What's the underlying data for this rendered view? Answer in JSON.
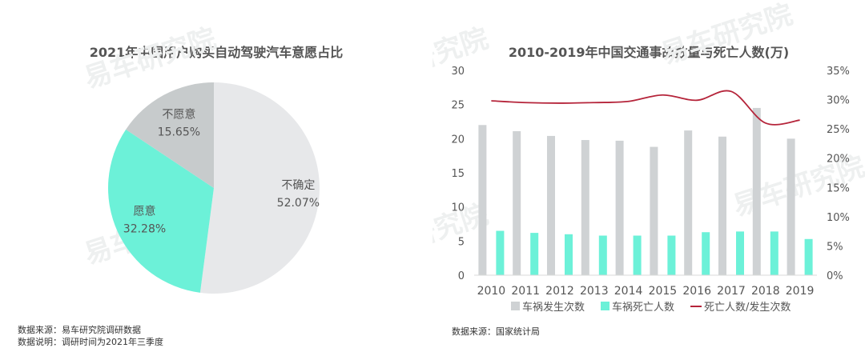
{
  "watermark": "易车研究院",
  "colors": {
    "gray": "#cfd2d4",
    "teal": "#6cf1d8",
    "red": "#b5243a",
    "text": "#555555"
  },
  "chart_data": [
    {
      "type": "pie",
      "title": "2021年中国用户购买自动驾驶汽车意愿占比",
      "slices": [
        {
          "label": "不确定",
          "value": 52.07,
          "value_label": "52.07%",
          "color": "#e7e8ea"
        },
        {
          "label": "愿意",
          "value": 32.28,
          "value_label": "32.28%",
          "color": "#6cf1d8"
        },
        {
          "label": "不愿意",
          "value": 15.65,
          "value_label": "15.65%",
          "color": "#c7cbcc"
        }
      ]
    },
    {
      "type": "bar",
      "title": "2010-2019年中国交通事故数量与死亡人数(万)",
      "categories": [
        "2010",
        "2011",
        "2012",
        "2013",
        "2014",
        "2015",
        "2016",
        "2017",
        "2018",
        "2019"
      ],
      "series": [
        {
          "name": "车祸发生次数",
          "type": "bar",
          "axis": "left",
          "color": "#cfd2d4",
          "values": [
            22.0,
            21.1,
            20.4,
            19.8,
            19.7,
            18.8,
            21.2,
            20.3,
            24.5,
            20.0
          ]
        },
        {
          "name": "车祸死亡人数",
          "type": "bar",
          "axis": "left",
          "color": "#6cf1d8",
          "values": [
            6.5,
            6.2,
            6.0,
            5.8,
            5.8,
            5.8,
            6.3,
            6.4,
            6.4,
            5.3
          ]
        },
        {
          "name": "死亡人数/发生次数",
          "type": "line",
          "axis": "right",
          "color": "#b5243a",
          "values": [
            0.298,
            0.295,
            0.294,
            0.295,
            0.297,
            0.308,
            0.299,
            0.314,
            0.26,
            0.265
          ]
        }
      ],
      "y_left": {
        "min": 0,
        "max": 30,
        "ticks": [
          "0",
          "5",
          "10",
          "15",
          "20",
          "25",
          "30"
        ]
      },
      "y_right": {
        "min": 0,
        "max": 0.35,
        "ticks": [
          "0%",
          "5%",
          "10%",
          "15%",
          "20%",
          "25%",
          "30%",
          "35%"
        ]
      },
      "grid": false,
      "legend": "bottom"
    }
  ],
  "footnotes": {
    "left_source": "数据来源：易车研究院调研数据",
    "left_note": "数据说明：调研时间为2021年三季度",
    "right_source": "数据来源：国家统计局"
  }
}
